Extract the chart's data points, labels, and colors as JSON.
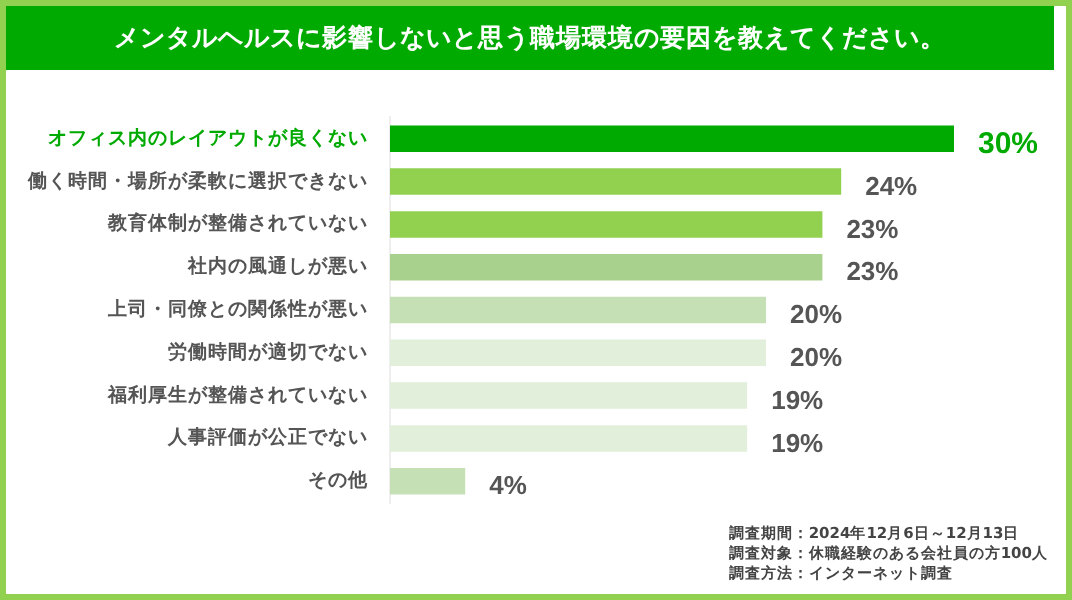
{
  "chart_data": {
    "type": "bar",
    "orientation": "horizontal",
    "title": "メンタルヘルスに影響しないと思う職場環境の要因を教えてください。",
    "categories": [
      "オフィス内のレイアウトが良くない",
      "働く時間・場所が柔軟に選択できない",
      "教育体制が整備されていない",
      "社内の風通しが悪い",
      "上司・同僚との関係性が悪い",
      "労働時間が適切でない",
      "福利厚生が整備されていない",
      "人事評価が公正でない",
      "その他"
    ],
    "values": [
      30,
      24,
      23,
      23,
      20,
      20,
      19,
      19,
      4
    ],
    "colors": [
      "#00aa00",
      "#92d050",
      "#92d050",
      "#a9d18e",
      "#c5e0b4",
      "#e2efda",
      "#e2efda",
      "#e2efda",
      "#c5e0b4"
    ],
    "value_labels": [
      "30%",
      "24%",
      "23%",
      "23%",
      "20%",
      "20%",
      "19%",
      "19%",
      "4%"
    ],
    "legend": false,
    "annotations": [
      "調査期間：2024年12月6日～12月13日",
      "調査対象：休職経験のある会社員の方100人",
      "調査方法：インターネット調査"
    ]
  }
}
